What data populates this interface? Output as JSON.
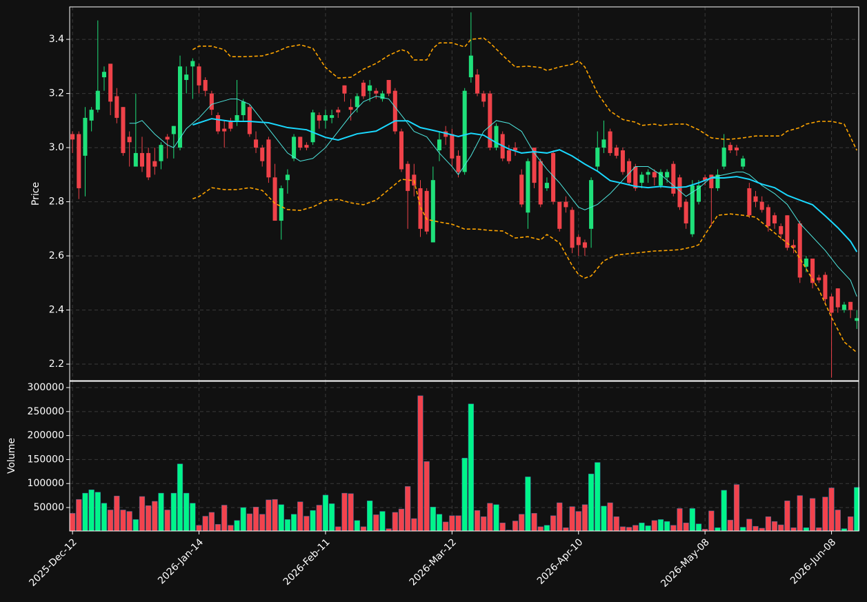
{
  "chart_data": [
    {
      "type": "candlestick",
      "ylabel": "Price",
      "grid": true,
      "xlim": [
        -0.45,
        124.3
      ],
      "ylim": [
        2.139,
        3.52
      ],
      "yticks": [
        2.2,
        2.4,
        2.6,
        2.8,
        {
          "value": 3,
          "label": "3.0"
        },
        3.2,
        3.4
      ],
      "up_color": "#1fe07a",
      "down_color": "#ef4249",
      "open": [
        3.05,
        3.05,
        2.97,
        3.1,
        3.14,
        3.26,
        3.31,
        3.19,
        3.15,
        3.04,
        2.93,
        2.98,
        2.98,
        2.95,
        2.95,
        3.04,
        3.05,
        3.0,
        3.25,
        3.3,
        3.3,
        3.25,
        3.2,
        3.12,
        3.07,
        3.1,
        3.1,
        3.12,
        3.15,
        3.03,
        3.0,
        3.03,
        2.89,
        2.73,
        2.88,
        2.96,
        3.04,
        3.01,
        3.02,
        3.12,
        3.1,
        3.11,
        3.14,
        3.23,
        3.15,
        3.15,
        3.24,
        3.21,
        3.21,
        3.18,
        3.25,
        3.21,
        3.06,
        2.94,
        2.9,
        2.85,
        2.84,
        2.65,
        2.99,
        3.06,
        3.05,
        2.97,
        2.91,
        3.26,
        3.27,
        3.2,
        3.2,
        3.0,
        3.05,
        2.99,
        3.0,
        2.9,
        2.76,
        3.0,
        2.95,
        2.85,
        2.98,
        2.8,
        2.8,
        2.77,
        2.67,
        2.65,
        2.7,
        2.93,
        3.0,
        3.06,
        3.0,
        2.99,
        2.95,
        2.93,
        2.87,
        2.9,
        2.91,
        2.86,
        2.89,
        2.94,
        2.89,
        2.8,
        2.68,
        2.8,
        2.89,
        2.9,
        2.85,
        2.93,
        3.01,
        3.0,
        2.93,
        2.85,
        2.82,
        2.8,
        2.78,
        2.75,
        2.71,
        2.75,
        2.64,
        2.72,
        2.56,
        2.59,
        2.52,
        2.53,
        2.45,
        2.48,
        2.4,
        2.43,
        2.36
      ],
      "high": [
        3.06,
        3.06,
        3.15,
        3.15,
        3.47,
        3.3,
        3.31,
        3.22,
        3.15,
        3.06,
        3.2,
        3.04,
        3.0,
        3.0,
        3.02,
        3.05,
        3.08,
        3.34,
        3.3,
        3.33,
        3.31,
        3.26,
        3.21,
        3.13,
        3.1,
        3.11,
        3.25,
        3.18,
        3.16,
        3.06,
        3.01,
        3.04,
        2.94,
        2.86,
        2.92,
        3.05,
        3.04,
        3.02,
        3.14,
        3.13,
        3.14,
        3.14,
        3.15,
        3.23,
        3.18,
        3.2,
        3.25,
        3.25,
        3.22,
        3.21,
        3.25,
        3.22,
        3.07,
        2.95,
        2.94,
        2.88,
        2.85,
        2.93,
        3.06,
        3.08,
        3.07,
        2.99,
        3.22,
        3.5,
        3.29,
        3.21,
        3.21,
        3.09,
        3.06,
        3.01,
        3.02,
        2.92,
        2.96,
        3.0,
        2.96,
        2.89,
        2.99,
        2.8,
        2.82,
        2.78,
        2.68,
        2.66,
        2.89,
        3.06,
        3.1,
        3.07,
        3.01,
        3.0,
        2.96,
        2.94,
        2.91,
        2.92,
        2.92,
        2.92,
        2.92,
        2.95,
        2.9,
        2.81,
        2.88,
        2.88,
        2.9,
        2.9,
        2.92,
        3.05,
        3.02,
        3.01,
        2.97,
        2.87,
        2.84,
        2.82,
        2.79,
        2.76,
        2.72,
        2.75,
        2.66,
        2.73,
        2.6,
        2.59,
        2.53,
        2.54,
        2.46,
        2.48,
        2.43,
        2.43,
        2.4
      ],
      "low": [
        2.98,
        2.81,
        2.82,
        3.06,
        3.13,
        3.21,
        3.12,
        3.09,
        2.97,
        2.93,
        2.93,
        2.91,
        2.88,
        2.9,
        2.92,
        2.96,
        2.96,
        2.99,
        3.2,
        3.18,
        3.2,
        3.19,
        3.12,
        3.05,
        3.0,
        3.06,
        3.08,
        3.1,
        3.04,
        2.98,
        2.93,
        2.87,
        2.73,
        2.66,
        2.83,
        2.95,
        2.99,
        2.99,
        3.01,
        3.07,
        3.07,
        3.09,
        3.11,
        3.17,
        3.1,
        3.13,
        3.18,
        3.17,
        3.18,
        3.17,
        3.19,
        3.05,
        2.91,
        2.7,
        2.82,
        2.67,
        2.68,
        2.65,
        2.95,
        3.01,
        2.93,
        2.89,
        2.9,
        3.24,
        3.19,
        3.15,
        2.99,
        2.99,
        2.95,
        2.94,
        2.97,
        2.78,
        2.7,
        2.85,
        2.78,
        2.84,
        2.79,
        2.69,
        2.76,
        2.61,
        2.6,
        2.6,
        2.63,
        2.91,
        2.98,
        2.97,
        2.96,
        2.9,
        2.86,
        2.84,
        2.85,
        2.87,
        2.86,
        2.85,
        2.87,
        2.82,
        2.77,
        2.7,
        2.67,
        2.79,
        2.86,
        2.71,
        2.84,
        2.92,
        2.98,
        2.97,
        2.92,
        2.74,
        2.78,
        2.76,
        2.69,
        2.7,
        2.66,
        2.62,
        2.61,
        2.5,
        2.54,
        2.48,
        2.5,
        2.42,
        2.15,
        2.39,
        2.39,
        2.37,
        2.33
      ],
      "close": [
        3.03,
        2.85,
        3.11,
        3.14,
        3.21,
        3.28,
        3.17,
        3.11,
        2.98,
        3.02,
        2.98,
        2.93,
        2.89,
        2.93,
        3.01,
        3.03,
        3.08,
        3.3,
        3.27,
        3.32,
        3.23,
        3.21,
        3.14,
        3.06,
        3.06,
        3.07,
        3.12,
        3.17,
        3.05,
        3.0,
        2.95,
        2.89,
        2.73,
        2.85,
        2.9,
        3.04,
        3.0,
        3.0,
        3.13,
        3.1,
        3.12,
        3.12,
        3.13,
        3.2,
        3.14,
        3.19,
        3.19,
        3.23,
        3.2,
        3.2,
        3.2,
        3.06,
        2.92,
        2.84,
        2.86,
        2.7,
        2.69,
        2.88,
        3.03,
        3.04,
        2.96,
        2.91,
        3.21,
        3.34,
        3.2,
        3.17,
        3.0,
        3.08,
        2.96,
        2.95,
        2.99,
        2.79,
        2.95,
        2.87,
        2.79,
        2.87,
        2.8,
        2.7,
        2.78,
        2.63,
        2.64,
        2.63,
        2.88,
        3.0,
        3.03,
        2.98,
        2.97,
        2.91,
        2.87,
        2.85,
        2.9,
        2.91,
        2.89,
        2.91,
        2.91,
        2.83,
        2.78,
        2.72,
        2.86,
        2.86,
        2.88,
        2.85,
        2.9,
        3.0,
        2.99,
        2.99,
        2.96,
        2.75,
        2.8,
        2.77,
        2.71,
        2.72,
        2.68,
        2.63,
        2.63,
        2.52,
        2.59,
        2.5,
        2.51,
        2.44,
        2.39,
        2.41,
        2.42,
        2.4,
        2.37
      ],
      "lines": [
        {
          "color": "#4ee8e0",
          "width": 1,
          "dash": false,
          "x": [
            9,
            10,
            11,
            13,
            15,
            16,
            18,
            20,
            22,
            25,
            26,
            28,
            30,
            32,
            34,
            36,
            38,
            40,
            42,
            44,
            46,
            48,
            50,
            52,
            54,
            56,
            58,
            60,
            61,
            63,
            65,
            67,
            69,
            71,
            73,
            75,
            77,
            79,
            80,
            81,
            83,
            85,
            87,
            89,
            90,
            91,
            93,
            95,
            97,
            99,
            101,
            103,
            105,
            106,
            107,
            109,
            111,
            113,
            115,
            117,
            119,
            121,
            123,
            124
          ],
          "values": [
            3.09,
            3.09,
            3.1,
            3.05,
            3.01,
            3.0,
            3.07,
            3.11,
            3.16,
            3.18,
            3.18,
            3.16,
            3.1,
            3.04,
            2.98,
            2.95,
            2.96,
            3.0,
            3.06,
            3.12,
            3.17,
            3.19,
            3.18,
            3.12,
            3.06,
            3.04,
            2.98,
            2.93,
            2.9,
            2.97,
            3.06,
            3.1,
            3.09,
            3.06,
            2.98,
            2.92,
            2.87,
            2.81,
            2.78,
            2.77,
            2.79,
            2.83,
            2.88,
            2.93,
            2.93,
            2.93,
            2.9,
            2.86,
            2.82,
            2.85,
            2.89,
            2.9,
            2.91,
            2.91,
            2.9,
            2.86,
            2.83,
            2.79,
            2.72,
            2.67,
            2.62,
            2.56,
            2.51,
            2.45
          ]
        },
        {
          "color": "#1ad9ff",
          "width": 2,
          "dash": false,
          "x": [
            19,
            22,
            25,
            28,
            31,
            34,
            37,
            40,
            42,
            45,
            48,
            51,
            53,
            55,
            57,
            59,
            61,
            63,
            65,
            67,
            69,
            71,
            73,
            75,
            77,
            79,
            81,
            83,
            85,
            87,
            89,
            91,
            93,
            95,
            97,
            99,
            101,
            103,
            105,
            107,
            109,
            111,
            113,
            115,
            117,
            119,
            121,
            123,
            124
          ],
          "values": [
            3.084,
            3.107,
            3.097,
            3.097,
            3.092,
            3.074,
            3.066,
            3.038,
            3.028,
            3.051,
            3.061,
            3.099,
            3.099,
            3.074,
            3.064,
            3.053,
            3.041,
            3.053,
            3.046,
            3.018,
            2.995,
            2.98,
            2.985,
            2.98,
            2.992,
            2.969,
            2.939,
            2.913,
            2.878,
            2.868,
            2.857,
            2.852,
            2.857,
            2.852,
            2.855,
            2.87,
            2.888,
            2.888,
            2.893,
            2.883,
            2.865,
            2.852,
            2.824,
            2.806,
            2.789,
            2.748,
            2.704,
            2.654,
            2.615
          ]
        },
        {
          "color": "#ffa500",
          "width": 1.6,
          "dash": true,
          "x": [
            19,
            20,
            22,
            24,
            25,
            27,
            30,
            32,
            34,
            36,
            38,
            40,
            42,
            44,
            46,
            48,
            50,
            52,
            53,
            54,
            56,
            57,
            58,
            60,
            62,
            63,
            65,
            66,
            68,
            70,
            72,
            74,
            75,
            77,
            79,
            80,
            81,
            83,
            85,
            87,
            89,
            90,
            92,
            93,
            95,
            97,
            99,
            101,
            103,
            104,
            106,
            108,
            110,
            112,
            113,
            115,
            116,
            118,
            120,
            122,
            124
          ],
          "values": [
            3.362,
            3.375,
            3.375,
            3.362,
            3.336,
            3.336,
            3.339,
            3.352,
            3.372,
            3.38,
            3.367,
            3.296,
            3.257,
            3.26,
            3.29,
            3.311,
            3.341,
            3.362,
            3.354,
            3.324,
            3.324,
            3.367,
            3.387,
            3.387,
            3.372,
            3.4,
            3.405,
            3.387,
            3.341,
            3.298,
            3.301,
            3.296,
            3.285,
            3.298,
            3.308,
            3.321,
            3.298,
            3.201,
            3.135,
            3.104,
            3.094,
            3.082,
            3.087,
            3.082,
            3.087,
            3.087,
            3.066,
            3.036,
            3.031,
            3.031,
            3.036,
            3.043,
            3.043,
            3.043,
            3.061,
            3.074,
            3.087,
            3.097,
            3.097,
            3.087,
            2.99
          ]
        },
        {
          "color": "#ffa500",
          "width": 1.6,
          "dash": true,
          "x": [
            19,
            20,
            22,
            24,
            26,
            28,
            30,
            32,
            34,
            36,
            38,
            40,
            42,
            44,
            46,
            48,
            50,
            52,
            54,
            55,
            56,
            58,
            60,
            62,
            64,
            66,
            68,
            70,
            72,
            74,
            75,
            77,
            79,
            80,
            81,
            82,
            84,
            86,
            88,
            90,
            92,
            94,
            96,
            98,
            99,
            100,
            102,
            104,
            106,
            108,
            110,
            112,
            114,
            116,
            118,
            120,
            122,
            124
          ],
          "values": [
            2.811,
            2.819,
            2.852,
            2.845,
            2.845,
            2.852,
            2.842,
            2.794,
            2.771,
            2.768,
            2.781,
            2.804,
            2.809,
            2.796,
            2.789,
            2.806,
            2.845,
            2.883,
            2.878,
            2.781,
            2.735,
            2.725,
            2.717,
            2.699,
            2.699,
            2.694,
            2.692,
            2.666,
            2.671,
            2.659,
            2.679,
            2.648,
            2.564,
            2.531,
            2.518,
            2.526,
            2.582,
            2.603,
            2.608,
            2.613,
            2.618,
            2.62,
            2.623,
            2.633,
            2.641,
            2.679,
            2.75,
            2.755,
            2.75,
            2.743,
            2.704,
            2.666,
            2.628,
            2.552,
            2.475,
            2.373,
            2.282,
            2.243
          ]
        }
      ]
    },
    {
      "type": "bar",
      "ylabel": "Volume",
      "grid": true,
      "xlim": [
        -0.45,
        124.3
      ],
      "ylim": [
        1150,
        313000
      ],
      "yticks": [
        50000,
        100000,
        150000,
        200000,
        250000,
        300000
      ],
      "xticks": [
        {
          "value": 0,
          "label": "2025-Dec-12"
        },
        {
          "value": 20,
          "label": "2026-Jan-14"
        },
        {
          "value": 40,
          "label": "2026-Feb-11"
        },
        {
          "value": 60,
          "label": "2026-Mar-12"
        },
        {
          "value": 80,
          "label": "2026-Apr-10"
        },
        {
          "value": 100,
          "label": "2026-May-08"
        },
        {
          "value": 120,
          "label": "2026-Jun-08"
        }
      ],
      "up_color": "#00f58a",
      "down_color": "#f2434d",
      "values": [
        38000,
        67000,
        80000,
        87000,
        82000,
        59000,
        45000,
        74000,
        45000,
        42000,
        25000,
        73000,
        54000,
        63000,
        80000,
        45000,
        80000,
        141000,
        80000,
        59000,
        13000,
        32000,
        40000,
        15000,
        55000,
        13000,
        23000,
        50000,
        37000,
        51000,
        36000,
        66000,
        67000,
        56000,
        25000,
        36000,
        62000,
        32000,
        44000,
        55000,
        76000,
        58000,
        10000,
        80000,
        79000,
        23000,
        10000,
        64000,
        35000,
        42000,
        6000,
        40000,
        47000,
        94000,
        27000,
        283000,
        146000,
        51000,
        36000,
        20000,
        33000,
        33000,
        153000,
        266000,
        44000,
        31000,
        59000,
        56000,
        18000,
        3000,
        22000,
        36000,
        114000,
        38000,
        10000,
        13000,
        33000,
        60000,
        8000,
        52000,
        42000,
        56000,
        120000,
        144000,
        53000,
        60000,
        31000,
        10000,
        9000,
        13000,
        18000,
        12000,
        23000,
        25000,
        21000,
        13000,
        48000,
        18000,
        48000,
        16000,
        5000,
        43000,
        8000,
        86000,
        24000,
        98000,
        9000,
        26000,
        11000,
        7000,
        31000,
        21000,
        14000,
        64000,
        8000,
        75000,
        8000,
        69000,
        8000,
        72000,
        91000,
        45000,
        6000,
        31000,
        92000
      ]
    }
  ]
}
